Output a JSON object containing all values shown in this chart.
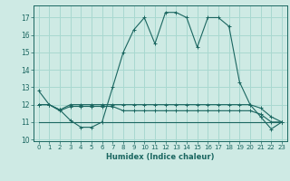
{
  "xlabel": "Humidex (Indice chaleur)",
  "bg_color": "#ceeae4",
  "grid_color": "#a8d8d0",
  "line_color": "#1a6660",
  "xlim": [
    -0.5,
    23.5
  ],
  "ylim": [
    9.9,
    17.7
  ],
  "yticks": [
    10,
    11,
    12,
    13,
    14,
    15,
    16,
    17
  ],
  "xtick_labels": [
    "0",
    "1",
    "2",
    "3",
    "4",
    "5",
    "6",
    "7",
    "8",
    "9",
    "10",
    "11",
    "12",
    "13",
    "14",
    "15",
    "16",
    "17",
    "18",
    "19",
    "20",
    "21",
    "22",
    "23"
  ],
  "series1": [
    12.8,
    12.0,
    11.7,
    11.1,
    10.7,
    10.7,
    11.0,
    13.0,
    15.0,
    16.3,
    17.0,
    15.5,
    17.3,
    17.3,
    17.0,
    15.3,
    17.0,
    17.0,
    16.5,
    13.3,
    12.0,
    11.3,
    10.6,
    11.0
  ],
  "series2": [
    12.0,
    12.0,
    11.7,
    12.0,
    12.0,
    12.0,
    12.0,
    12.0,
    12.0,
    12.0,
    12.0,
    12.0,
    12.0,
    12.0,
    12.0,
    12.0,
    12.0,
    12.0,
    12.0,
    12.0,
    12.0,
    11.8,
    11.3,
    11.0
  ],
  "series3": [
    12.0,
    12.0,
    11.65,
    11.9,
    11.9,
    11.9,
    11.9,
    11.9,
    11.65,
    11.65,
    11.65,
    11.65,
    11.65,
    11.65,
    11.65,
    11.65,
    11.65,
    11.65,
    11.65,
    11.65,
    11.65,
    11.45,
    11.0,
    11.0
  ],
  "series4": [
    11.0,
    11.0,
    11.0,
    11.0,
    11.0,
    11.0,
    11.0,
    11.0,
    11.0,
    11.0,
    11.0,
    11.0,
    11.0,
    11.0,
    11.0,
    11.0,
    11.0,
    11.0,
    11.0,
    11.0,
    11.0,
    11.0,
    11.0,
    11.0
  ]
}
